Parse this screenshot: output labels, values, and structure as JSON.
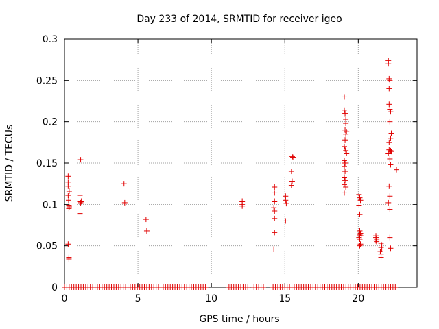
{
  "chart_data": {
    "type": "scatter",
    "title": "Day 233 of 2014, SRMTID for receiver igeo",
    "xlabel": "GPS time / hours",
    "ylabel": "SRMTID / TECUs",
    "xlim": [
      0,
      24.0
    ],
    "ylim": [
      0,
      0.3
    ],
    "xticks": [
      0,
      5,
      10,
      15,
      20
    ],
    "yticks": [
      0,
      0.05,
      0.1,
      0.15,
      0.2,
      0.25,
      0.3
    ],
    "xtick_labels": [
      "0",
      "5",
      "10",
      "15",
      "20"
    ],
    "ytick_labels": [
      "0",
      "0.05",
      "0.1",
      "0.15",
      "0.2",
      "0.25",
      "0.3"
    ],
    "grid": true,
    "marker": "+",
    "color": "#e00000",
    "series": [
      {
        "name": "SRMTID",
        "points": [
          [
            0.25,
            0.134
          ],
          [
            0.25,
            0.127
          ],
          [
            0.25,
            0.111
          ],
          [
            0.28,
            0.105
          ],
          [
            0.3,
            0.099
          ],
          [
            0.3,
            0.095
          ],
          [
            0.32,
            0.116
          ],
          [
            0.32,
            0.097
          ],
          [
            0.25,
            0.052
          ],
          [
            0.3,
            0.036
          ],
          [
            0.3,
            0.034
          ],
          [
            0.25,
            0.122
          ],
          [
            1.05,
            0.154
          ],
          [
            1.1,
            0.154
          ],
          [
            1.05,
            0.111
          ],
          [
            1.05,
            0.104
          ],
          [
            1.1,
            0.102
          ],
          [
            1.15,
            0.104
          ],
          [
            1.05,
            0.089
          ],
          [
            4.05,
            0.125
          ],
          [
            4.1,
            0.102
          ],
          [
            5.55,
            0.082
          ],
          [
            5.6,
            0.068
          ],
          [
            12.1,
            0.104
          ],
          [
            12.1,
            0.1
          ],
          [
            12.1,
            0.098
          ],
          [
            14.3,
            0.121
          ],
          [
            14.3,
            0.114
          ],
          [
            14.3,
            0.104
          ],
          [
            14.25,
            0.096
          ],
          [
            14.3,
            0.092
          ],
          [
            14.3,
            0.083
          ],
          [
            14.3,
            0.066
          ],
          [
            14.25,
            0.046
          ],
          [
            15.05,
            0.11
          ],
          [
            15.05,
            0.105
          ],
          [
            15.1,
            0.101
          ],
          [
            15.05,
            0.08
          ],
          [
            15.5,
            0.158
          ],
          [
            15.55,
            0.157
          ],
          [
            15.45,
            0.14
          ],
          [
            15.5,
            0.128
          ],
          [
            15.45,
            0.123
          ],
          [
            19.05,
            0.23
          ],
          [
            19.05,
            0.214
          ],
          [
            19.1,
            0.21
          ],
          [
            19.15,
            0.203
          ],
          [
            19.15,
            0.198
          ],
          [
            19.1,
            0.19
          ],
          [
            19.2,
            0.188
          ],
          [
            19.15,
            0.185
          ],
          [
            19.1,
            0.178
          ],
          [
            19.05,
            0.17
          ],
          [
            19.1,
            0.167
          ],
          [
            19.15,
            0.165
          ],
          [
            19.2,
            0.162
          ],
          [
            19.05,
            0.153
          ],
          [
            19.1,
            0.15
          ],
          [
            19.05,
            0.146
          ],
          [
            19.1,
            0.14
          ],
          [
            19.05,
            0.133
          ],
          [
            19.1,
            0.129
          ],
          [
            19.05,
            0.124
          ],
          [
            19.15,
            0.121
          ],
          [
            19.05,
            0.114
          ],
          [
            20.05,
            0.112
          ],
          [
            20.1,
            0.108
          ],
          [
            20.15,
            0.105
          ],
          [
            20.05,
            0.099
          ],
          [
            20.1,
            0.088
          ],
          [
            20.1,
            0.068
          ],
          [
            20.15,
            0.065
          ],
          [
            20.1,
            0.063
          ],
          [
            20.2,
            0.062
          ],
          [
            20.05,
            0.06
          ],
          [
            20.1,
            0.058
          ],
          [
            20.15,
            0.052
          ],
          [
            20.1,
            0.05
          ],
          [
            21.2,
            0.062
          ],
          [
            21.2,
            0.06
          ],
          [
            21.25,
            0.058
          ],
          [
            21.2,
            0.056
          ],
          [
            21.25,
            0.055
          ],
          [
            21.55,
            0.053
          ],
          [
            21.6,
            0.051
          ],
          [
            21.55,
            0.048
          ],
          [
            21.6,
            0.046
          ],
          [
            21.5,
            0.043
          ],
          [
            21.55,
            0.04
          ],
          [
            21.55,
            0.036
          ],
          [
            22.05,
            0.274
          ],
          [
            22.05,
            0.27
          ],
          [
            22.1,
            0.252
          ],
          [
            22.15,
            0.25
          ],
          [
            22.1,
            0.24
          ],
          [
            22.1,
            0.221
          ],
          [
            22.15,
            0.215
          ],
          [
            22.2,
            0.212
          ],
          [
            22.15,
            0.2
          ],
          [
            22.25,
            0.186
          ],
          [
            22.2,
            0.18
          ],
          [
            22.1,
            0.175
          ],
          [
            22.1,
            0.166
          ],
          [
            22.2,
            0.165
          ],
          [
            22.25,
            0.164
          ],
          [
            22.05,
            0.162
          ],
          [
            22.15,
            0.155
          ],
          [
            22.2,
            0.148
          ],
          [
            22.1,
            0.122
          ],
          [
            22.15,
            0.11
          ],
          [
            22.05,
            0.102
          ],
          [
            22.15,
            0.094
          ],
          [
            22.15,
            0.06
          ],
          [
            22.2,
            0.047
          ],
          [
            22.6,
            0.142
          ]
        ]
      }
    ],
    "zero_spans": [
      [
        0.0,
        9.6
      ],
      [
        11.2,
        12.5
      ],
      [
        12.9,
        13.6
      ],
      [
        14.2,
        22.6
      ]
    ],
    "zero_step": 0.16
  }
}
